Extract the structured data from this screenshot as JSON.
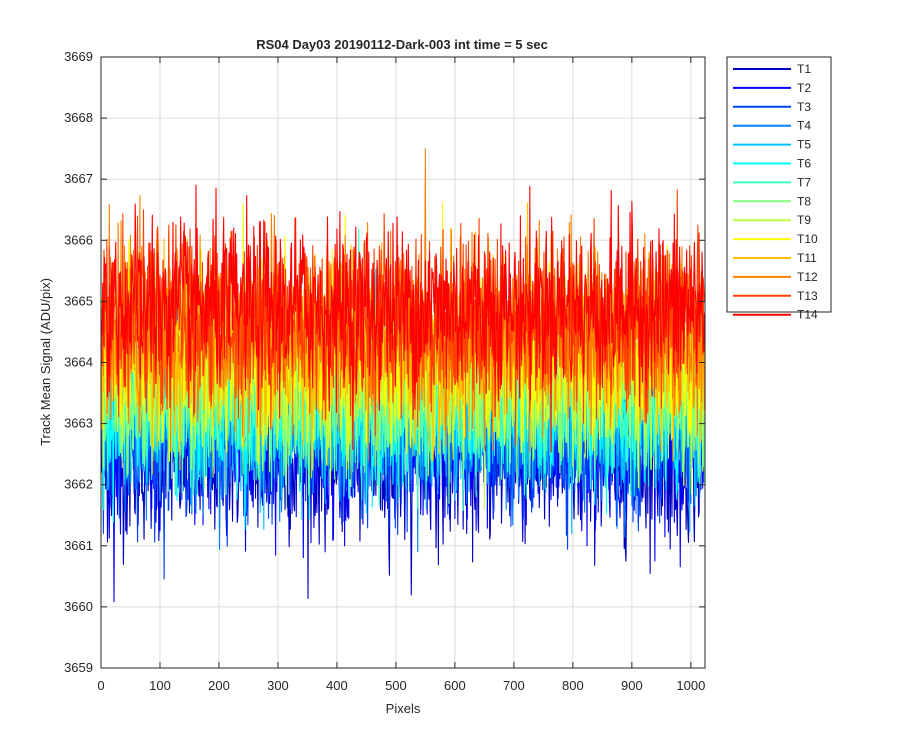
{
  "chart_data": {
    "type": "line",
    "title": "RS04 Day03 20190112-Dark-003 int time = 5 sec",
    "xlabel": "Pixels",
    "ylabel": "Track Mean Signal (ADU/pix)",
    "xlim": [
      0,
      1024
    ],
    "ylim": [
      3659,
      3669
    ],
    "xticks": [
      0,
      100,
      200,
      300,
      400,
      500,
      600,
      700,
      800,
      900,
      1000
    ],
    "yticks": [
      3659,
      3660,
      3661,
      3662,
      3663,
      3664,
      3665,
      3666,
      3667,
      3668,
      3669
    ],
    "grid": true,
    "legend_position": "outside-top-right",
    "n_points": 1024,
    "series": [
      {
        "name": "T1",
        "color": "#0000bf",
        "mean": 3662.4,
        "noise": 0.65
      },
      {
        "name": "T2",
        "color": "#0000ff",
        "mean": 3662.7,
        "noise": 0.65
      },
      {
        "name": "T3",
        "color": "#0040ff",
        "mean": 3662.9,
        "noise": 0.65
      },
      {
        "name": "T4",
        "color": "#0080ff",
        "mean": 3663.1,
        "noise": 0.65
      },
      {
        "name": "T5",
        "color": "#00bfff",
        "mean": 3663.2,
        "noise": 0.65
      },
      {
        "name": "T6",
        "color": "#00ffff",
        "mean": 3663.3,
        "noise": 0.65
      },
      {
        "name": "T7",
        "color": "#40ffbf",
        "mean": 3663.4,
        "noise": 0.65
      },
      {
        "name": "T8",
        "color": "#80ff80",
        "mean": 3663.6,
        "noise": 0.65
      },
      {
        "name": "T9",
        "color": "#bfff40",
        "mean": 3663.8,
        "noise": 0.65
      },
      {
        "name": "T10",
        "color": "#ffff00",
        "mean": 3664.1,
        "noise": 0.7
      },
      {
        "name": "T11",
        "color": "#ffbf00",
        "mean": 3664.3,
        "noise": 0.7
      },
      {
        "name": "T12",
        "color": "#ff8000",
        "mean": 3664.5,
        "noise": 0.7
      },
      {
        "name": "T13",
        "color": "#ff4000",
        "mean": 3664.7,
        "noise": 0.7
      },
      {
        "name": "T14",
        "color": "#ff0000",
        "mean": 3664.9,
        "noise": 0.7
      }
    ]
  }
}
